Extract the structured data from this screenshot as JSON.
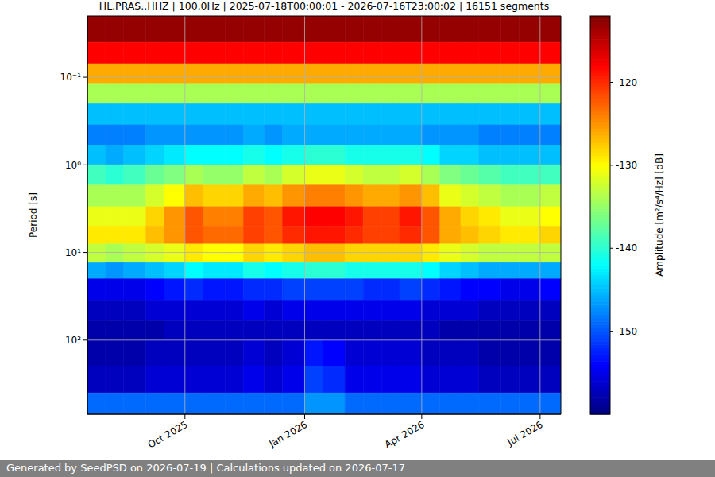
{
  "chart_data": {
    "type": "heatmap",
    "title": "HL.PRAS..HHZ | 100.0Hz | 2025-07-18T00:00:01 - 2026-07-16T23:00:02 | 16151 segments",
    "y_label": "Period [s]",
    "footer": "Generated by SeedPSD on 2026-07-19 | Calculations updated on 2026-07-17",
    "log": "y",
    "grid": true,
    "color": "jet",
    "xlim": [
      "2025-07-18T00:00:01",
      "2026-07-16T23:00:02"
    ],
    "xticks": [
      {
        "value": "2025-10-01",
        "label": "Oct 2025"
      },
      {
        "value": "2026-01-01",
        "label": "Jan 2026"
      },
      {
        "value": "2026-04-01",
        "label": "Apr 2026"
      },
      {
        "value": "2026-07-01",
        "label": "Jul 2026"
      }
    ],
    "ylim": [
      0.02,
      700
    ],
    "yticks": [
      {
        "value": 0.1,
        "label": "10⁻¹"
      },
      {
        "value": 1,
        "label": "10⁰"
      },
      {
        "value": 10,
        "label": "10¹"
      },
      {
        "value": 100,
        "label": "10²"
      }
    ],
    "x_edges": [
      "2025-07-18T00:00:01",
      "2025-08-01",
      "2025-08-15",
      "2025-09-01",
      "2025-09-15",
      "2025-10-01",
      "2025-10-15",
      "2025-11-01",
      "2025-11-15",
      "2025-12-01",
      "2025-12-15",
      "2026-01-01",
      "2026-01-15",
      "2026-02-01",
      "2026-02-15",
      "2026-03-01",
      "2026-03-15",
      "2026-04-01",
      "2026-04-15",
      "2026-05-01",
      "2026-05-15",
      "2026-06-01",
      "2026-06-15",
      "2026-07-01",
      "2026-07-16T23:00:02"
    ],
    "y_edges": [
      0.02,
      0.04,
      0.07,
      0.12,
      0.2,
      0.35,
      0.6,
      1,
      1.7,
      3,
      5,
      8,
      13,
      20,
      35,
      60,
      100,
      200,
      400,
      700
    ],
    "cells": [
      [
        -113,
        -113,
        -113,
        -113,
        -113,
        -113,
        -113,
        -113,
        -113,
        -113,
        -113,
        -113,
        -113,
        -113,
        -113,
        -113,
        -113,
        -113,
        -113,
        -113,
        -113,
        -113,
        -113,
        -113
      ],
      [
        -118,
        -118,
        -118,
        -118,
        -118,
        -118,
        -118,
        -118,
        -118,
        -118,
        -118,
        -118,
        -118,
        -118,
        -118,
        -118,
        -118,
        -118,
        -118,
        -118,
        -118,
        -118,
        -118,
        -118
      ],
      [
        -126,
        -126,
        -126,
        -126,
        -126,
        -126,
        -126,
        -126,
        -126,
        -126,
        -126,
        -126,
        -126,
        -126,
        -126,
        -126,
        -126,
        -126,
        -126,
        -126,
        -126,
        -126,
        -126,
        -126
      ],
      [
        -134,
        -134,
        -134,
        -134,
        -134,
        -134,
        -134,
        -134,
        -134,
        -134,
        -134,
        -134,
        -134,
        -134,
        -134,
        -134,
        -134,
        -134,
        -134,
        -134,
        -134,
        -134,
        -134,
        -134
      ],
      [
        -145,
        -145,
        -145,
        -145,
        -145,
        -145,
        -145,
        -145,
        -145,
        -145,
        -145,
        -145,
        -145,
        -145,
        -145,
        -145,
        -145,
        -145,
        -145,
        -145,
        -145,
        -145,
        -145,
        -145
      ],
      [
        -148,
        -148,
        -148,
        -147,
        -147,
        -147,
        -147,
        -147,
        -146,
        -147,
        -146,
        -146,
        -146,
        -146,
        -146,
        -146,
        -146,
        -147,
        -147,
        -147,
        -148,
        -148,
        -148,
        -148
      ],
      [
        -145,
        -146,
        -145,
        -144,
        -143,
        -142,
        -142,
        -142,
        -141,
        -142,
        -141,
        -140,
        -140,
        -141,
        -141,
        -141,
        -141,
        -142,
        -144,
        -144,
        -145,
        -145,
        -145,
        -145
      ],
      [
        -139,
        -140,
        -139,
        -137,
        -136,
        -134,
        -135,
        -135,
        -133,
        -134,
        -132,
        -131,
        -131,
        -132,
        -133,
        -133,
        -132,
        -134,
        -136,
        -137,
        -138,
        -139,
        -139,
        -139
      ],
      [
        -134,
        -134,
        -134,
        -132,
        -130,
        -127,
        -128,
        -128,
        -126,
        -127,
        -125,
        -124,
        -124,
        -125,
        -126,
        -126,
        -125,
        -127,
        -131,
        -132,
        -133,
        -134,
        -134,
        -133
      ],
      [
        -131,
        -131,
        -131,
        -128,
        -125,
        -122,
        -124,
        -124,
        -121,
        -122,
        -119,
        -118,
        -118,
        -119,
        -121,
        -121,
        -119,
        -122,
        -126,
        -128,
        -129,
        -131,
        -131,
        -130
      ],
      [
        -129,
        -129,
        -129,
        -127,
        -125,
        -122,
        -123,
        -123,
        -121,
        -122,
        -120,
        -119,
        -119,
        -120,
        -121,
        -121,
        -120,
        -122,
        -126,
        -127,
        -128,
        -129,
        -129,
        -128
      ],
      [
        -133,
        -134,
        -133,
        -132,
        -131,
        -129,
        -130,
        -130,
        -128,
        -129,
        -128,
        -127,
        -127,
        -128,
        -128,
        -128,
        -128,
        -129,
        -131,
        -132,
        -133,
        -133,
        -133,
        -133
      ],
      [
        -146,
        -147,
        -146,
        -145,
        -144,
        -142,
        -143,
        -143,
        -141,
        -142,
        -141,
        -140,
        -140,
        -141,
        -141,
        -141,
        -141,
        -142,
        -144,
        -145,
        -146,
        -146,
        -146,
        -146
      ],
      [
        -155,
        -155,
        -155,
        -154,
        -153,
        -152,
        -153,
        -153,
        -152,
        -152,
        -151,
        -151,
        -151,
        -151,
        -152,
        -152,
        -151,
        -152,
        -153,
        -154,
        -154,
        -155,
        -155,
        -154
      ],
      [
        -157,
        -157,
        -157,
        -156,
        -156,
        -156,
        -156,
        -156,
        -155,
        -156,
        -155,
        -155,
        -155,
        -155,
        -155,
        -155,
        -155,
        -156,
        -156,
        -156,
        -157,
        -157,
        -157,
        -157
      ],
      [
        -158,
        -158,
        -158,
        -158,
        -157,
        -157,
        -157,
        -157,
        -157,
        -157,
        -157,
        -157,
        -157,
        -157,
        -157,
        -157,
        -157,
        -157,
        -158,
        -158,
        -158,
        -158,
        -158,
        -158
      ],
      [
        -158,
        -158,
        -158,
        -157,
        -157,
        -157,
        -157,
        -157,
        -156,
        -157,
        -156,
        -153,
        -154,
        -156,
        -156,
        -156,
        -156,
        -157,
        -157,
        -157,
        -158,
        -158,
        -158,
        -158
      ],
      [
        -157,
        -157,
        -157,
        -156,
        -156,
        -156,
        -156,
        -156,
        -155,
        -156,
        -155,
        -151,
        -152,
        -155,
        -155,
        -155,
        -155,
        -156,
        -156,
        -156,
        -157,
        -157,
        -157,
        -157
      ],
      [
        -149,
        -149,
        -149,
        -149,
        -149,
        -149,
        -149,
        -149,
        -149,
        -149,
        -149,
        -147,
        -147,
        -149,
        -149,
        -149,
        -149,
        -149,
        -149,
        -149,
        -149,
        -149,
        -149,
        -149
      ]
    ],
    "clim": [
      -160,
      -112
    ],
    "cticks": [
      -150,
      -140,
      -130,
      -120
    ],
    "colorbar_label": "Amplitude [m²/s⁴/Hz] [dB]"
  }
}
